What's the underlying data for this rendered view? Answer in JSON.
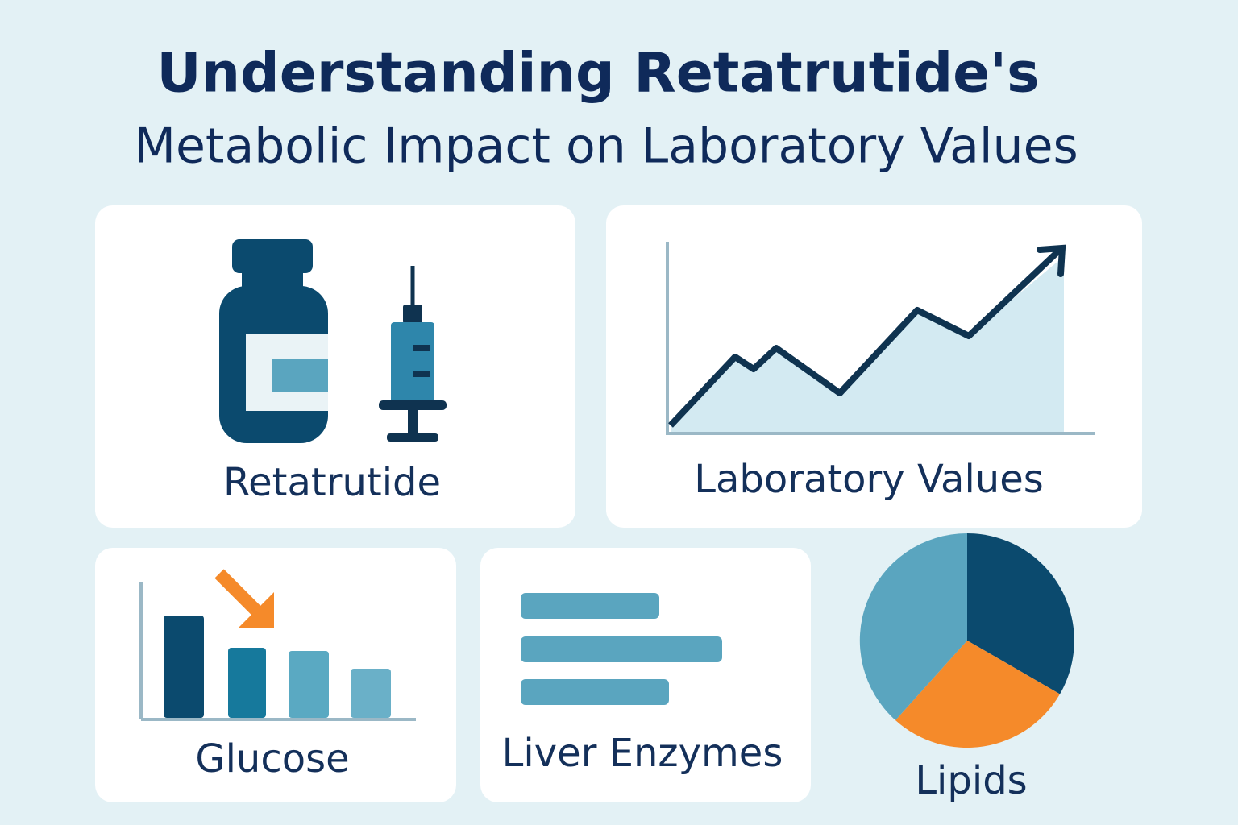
{
  "title": {
    "line1": "Understanding Retatrutide's",
    "line2": "Metabolic Impact on Laboratory Values"
  },
  "cards": [
    {
      "label": "Retatrutide"
    },
    {
      "label": "Laboratory Values"
    },
    {
      "label": "Glucose"
    },
    {
      "label": "Liver Enzymes"
    },
    {
      "label": "Lipids"
    }
  ]
}
